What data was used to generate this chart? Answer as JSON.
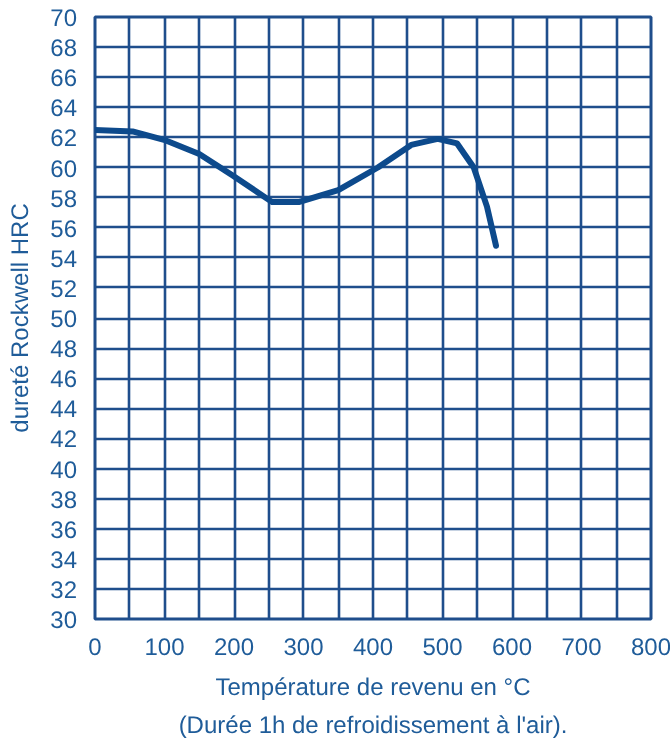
{
  "chart_data": {
    "type": "line",
    "xlabel": "Température de revenu en °C",
    "ylabel": "dureté Rockwell HRC",
    "annotations": [
      "(Durée 1h de refroidissement à l'air)."
    ],
    "x": [
      0,
      54,
      102,
      150,
      197,
      255,
      293,
      350,
      407,
      455,
      493,
      521,
      545,
      564,
      577
    ],
    "series": [
      {
        "color": "#0d4a8c",
        "values": [
          62.5,
          62.4,
          61.8,
          60.9,
          59.5,
          57.7,
          57.7,
          58.5,
          60.0,
          61.5,
          61.9,
          61.6,
          60.0,
          57.4,
          54.8
        ]
      }
    ],
    "xlim": [
      0,
      800
    ],
    "ylim": [
      30,
      70
    ],
    "xticks": [
      0,
      {
        "value": 50,
        "label": null
      },
      100,
      {
        "value": 150,
        "label": null
      },
      200,
      {
        "value": 250,
        "label": null
      },
      300,
      {
        "value": 350,
        "label": null
      },
      400,
      {
        "value": 450,
        "label": null
      },
      500,
      {
        "value": 550,
        "label": null
      },
      600,
      {
        "value": 650,
        "label": null
      },
      700,
      {
        "value": 750,
        "label": null
      },
      800
    ],
    "yticks": [
      30,
      32,
      34,
      36,
      38,
      40,
      42,
      44,
      46,
      48,
      50,
      52,
      54,
      56,
      58,
      60,
      62,
      64,
      66,
      68,
      70
    ],
    "grid": true,
    "marker": "none",
    "line_style": "solid"
  }
}
